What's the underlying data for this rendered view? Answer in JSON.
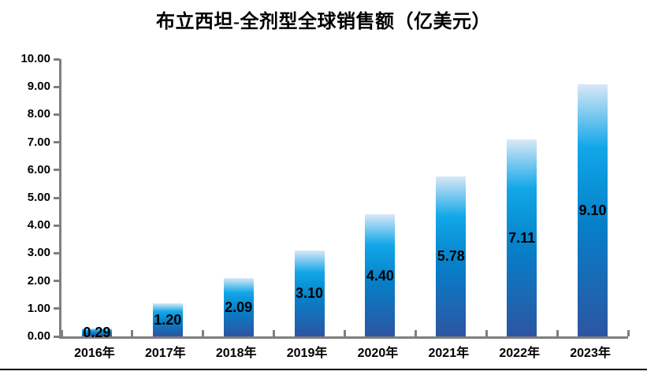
{
  "page": {
    "background": "#ffffff"
  },
  "chart_data": {
    "type": "bar",
    "title": "布立西坦-全剂型全球销售额（亿美元）",
    "categories": [
      "2016年",
      "2017年",
      "2018年",
      "2019年",
      "2020年",
      "2021年",
      "2022年",
      "2023年"
    ],
    "values": [
      0.29,
      1.2,
      2.09,
      3.1,
      4.4,
      5.78,
      7.11,
      9.1
    ],
    "value_labels": [
      "0.29",
      "1.20",
      "2.09",
      "3.10",
      "4.40",
      "5.78",
      "7.11",
      "9.10"
    ],
    "xlabel": "",
    "ylabel": "",
    "ylim": [
      0,
      10
    ],
    "y_tick_step": 1,
    "y_tick_labels": [
      "0.00",
      "1.00",
      "2.00",
      "3.00",
      "4.00",
      "5.00",
      "6.00",
      "7.00",
      "8.00",
      "9.00",
      "10.00"
    ],
    "grid": false,
    "legend": "none",
    "data_label_position": "inside-center",
    "colors": {
      "bar_gradient_top": "#d9e8f6",
      "bar_gradient_cyan": "#12a7e8",
      "bar_gradient_mid": "#0580c9",
      "bar_gradient_bottom": "#2d55a2",
      "axis": "#7f7f7f",
      "text": "#000000",
      "bottom_rule": "#000000",
      "background": "#ffffff"
    }
  }
}
